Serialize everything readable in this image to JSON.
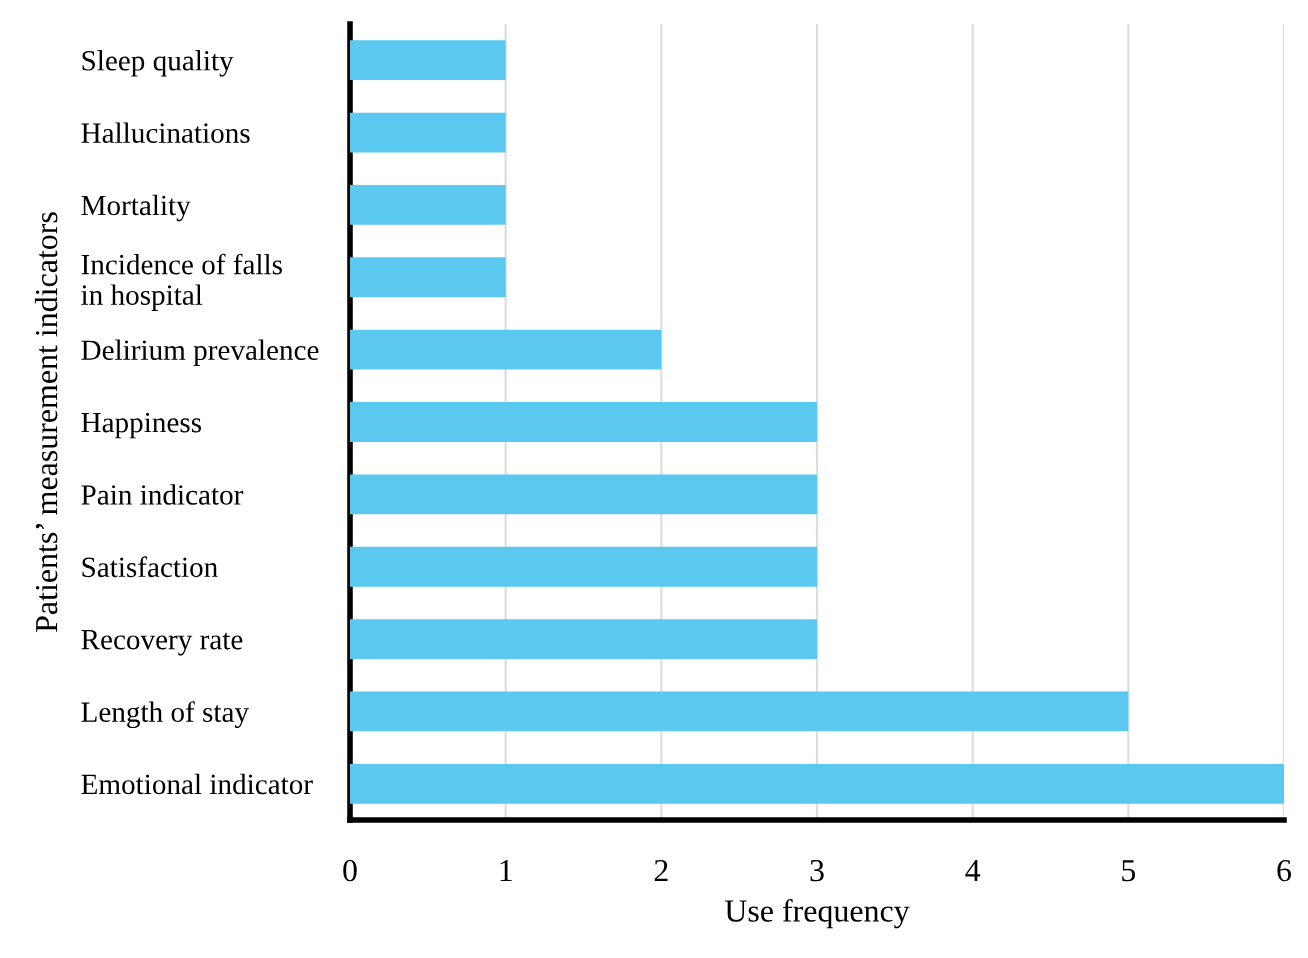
{
  "chart_data": {
    "type": "bar",
    "orientation": "horizontal",
    "categories": [
      "Sleep quality",
      "Hallucinations",
      "Mortality",
      "Incidence of falls\nin hospital",
      "Delirium prevalence",
      "Happiness",
      "Pain indicator",
      "Satisfaction",
      "Recovery rate",
      "Length of stay",
      "Emotional indicator"
    ],
    "values": [
      1,
      1,
      1,
      1,
      2,
      3,
      3,
      3,
      3,
      5,
      6
    ],
    "color": "#5bc8ef",
    "xlim": [
      0,
      6
    ],
    "xticks": [
      0,
      1,
      2,
      3,
      4,
      5,
      6
    ],
    "xlabel": "Use frequency",
    "ylabel": "Patients’ measurement indicators",
    "grid": "x"
  }
}
